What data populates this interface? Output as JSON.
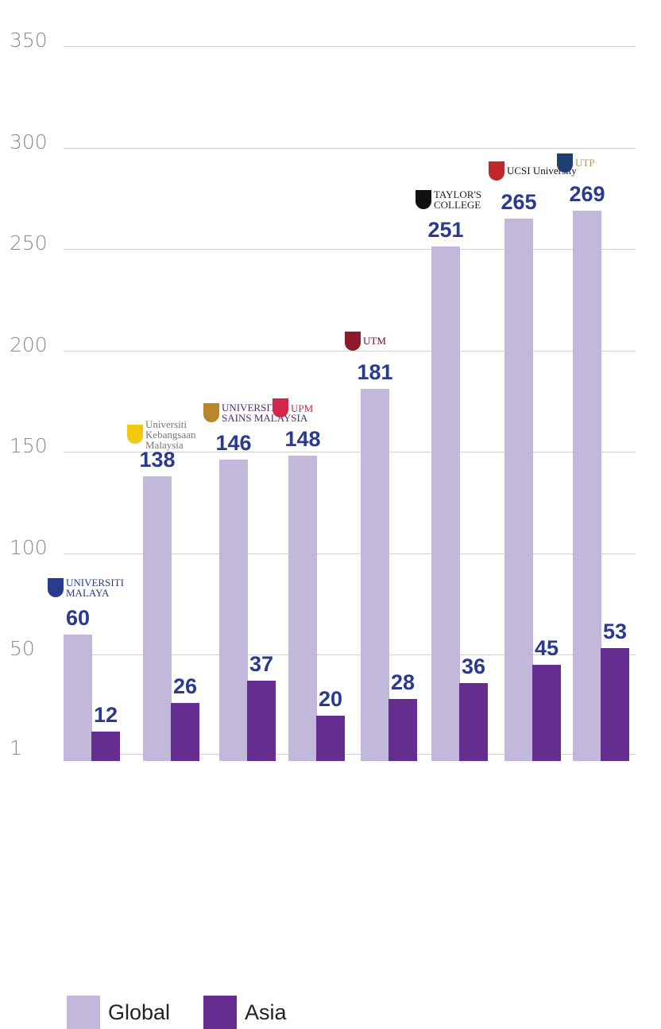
{
  "chart_data": {
    "type": "bar",
    "categories": [
      "Universiti Malaya",
      "Universiti Kebangsaan Malaysia",
      "Universiti Sains Malaysia",
      "Universiti Putra Malaysia",
      "UTM",
      "Taylor's College",
      "UCSI University",
      "UTP"
    ],
    "series": [
      {
        "name": "Global",
        "color": "#c2b8dc",
        "values": [
          60,
          138,
          146,
          148,
          181,
          251,
          265,
          269
        ]
      },
      {
        "name": "Asia",
        "color": "#662d91",
        "values": [
          12,
          26,
          37,
          20,
          28,
          36,
          45,
          53
        ]
      }
    ],
    "yticks": [
      "350",
      "300",
      "250",
      "200",
      "150",
      "100",
      "50",
      "1"
    ],
    "ylim": [
      1,
      350
    ],
    "grid": true,
    "legend_position": "bottom-left",
    "logos": [
      {
        "text": "UNIVERSITI MALAYA",
        "color": "#2a3a8f",
        "mark": "#2a3a8f"
      },
      {
        "text": "Universiti Kebangsaan Malaysia",
        "color": "#777",
        "mark": "#f2c811"
      },
      {
        "text": "UNIVERSITI SAINS MALAYSIA",
        "color": "#4b2c78",
        "mark": "#b8862b"
      },
      {
        "text": "UPM",
        "color": "#d2274a",
        "mark": "#d2274a"
      },
      {
        "text": "UTM",
        "color": "#6b1020",
        "mark": "#8b1a2a"
      },
      {
        "text": "TAYLOR'S COLLEGE",
        "color": "#222",
        "mark": "#111"
      },
      {
        "text": "UCSI University",
        "color": "#111",
        "mark": "#c0272d"
      },
      {
        "text": "UTP",
        "color": "#b8904a",
        "mark": "#1f3f73"
      }
    ]
  }
}
